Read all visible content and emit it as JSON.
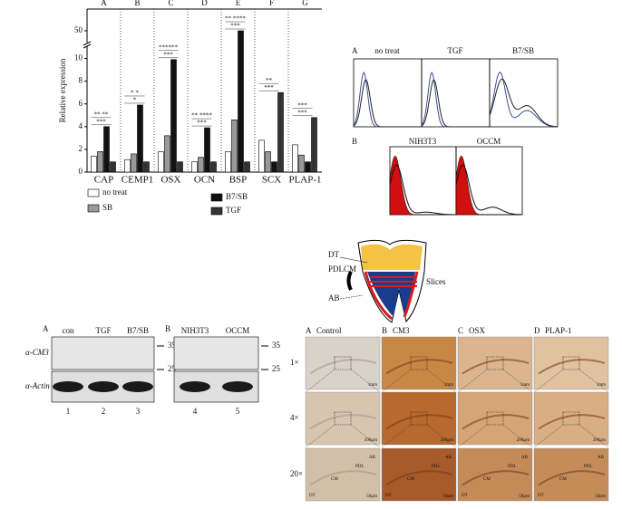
{
  "chart_data": {
    "type": "bar",
    "panel_labels": [
      "A",
      "B",
      "C",
      "D",
      "E",
      "F",
      "G"
    ],
    "categories": [
      "CAP",
      "CEMP1",
      "OSX",
      "OCN",
      "BSP",
      "SCX",
      "PLAP-1"
    ],
    "ylabel": "Relative expression",
    "series": [
      {
        "name": "no treat",
        "color": "#ffffff",
        "values": [
          1.4,
          1.1,
          1.8,
          0.9,
          1.8,
          2.8,
          2.4
        ]
      },
      {
        "name": "SB",
        "color": "#999999",
        "values": [
          1.8,
          1.6,
          3.2,
          1.3,
          4.6,
          1.8,
          1.5
        ]
      },
      {
        "name": "B7/SB",
        "color": "#111111",
        "values": [
          4.0,
          5.9,
          9.9,
          3.9,
          50,
          0.9,
          0.9
        ]
      },
      {
        "name": "TGF",
        "color": "#333333",
        "values": [
          0.9,
          0.9,
          0.9,
          0.9,
          0.9,
          7.0,
          4.8
        ]
      }
    ],
    "ylim": [
      0,
      54
    ],
    "yticks": [
      0,
      2,
      4,
      6,
      8,
      10,
      50
    ],
    "axis_break": [
      11,
      48
    ],
    "significance": [
      [
        "***",
        "** **"
      ],
      [
        "*",
        "* *"
      ],
      [
        "***",
        "******"
      ],
      [
        "***",
        "** ****"
      ],
      [
        "***",
        "** ****"
      ],
      [
        "***",
        "**"
      ],
      [
        "***",
        "***"
      ]
    ]
  },
  "flow": {
    "panel_a": {
      "label": "A",
      "conditions": [
        "no treat",
        "TGF",
        "B7/SB"
      ]
    },
    "panel_b": {
      "label": "B",
      "conditions": [
        "NIH3T3",
        "OCCM"
      ]
    }
  },
  "tooth": {
    "labels": [
      "DT",
      "PDLCM",
      "AB",
      "Slices"
    ]
  },
  "western": {
    "panel_a": {
      "label": "A",
      "lanes": [
        "con",
        "TGF",
        "B7/SB"
      ],
      "numbers": [
        "1",
        "2",
        "3"
      ]
    },
    "panel_b": {
      "label": "B",
      "lanes": [
        "NIH3T3",
        "OCCM"
      ],
      "numbers": [
        "4",
        "5"
      ]
    },
    "rows": [
      "α-CM3",
      "α-Actin"
    ],
    "markers": [
      "35",
      "25"
    ]
  },
  "ihc": {
    "columns": [
      {
        "letter": "A",
        "name": "Control"
      },
      {
        "letter": "B",
        "name": "CM3"
      },
      {
        "letter": "C",
        "name": "OSX"
      },
      {
        "letter": "D",
        "name": "PLAP-1"
      }
    ],
    "rows": [
      "1×",
      "4×",
      "20×"
    ],
    "scales": [
      "1mm",
      "200µm",
      "50µm"
    ],
    "tissue": [
      "DT",
      "CM",
      "PDL",
      "AB"
    ]
  }
}
